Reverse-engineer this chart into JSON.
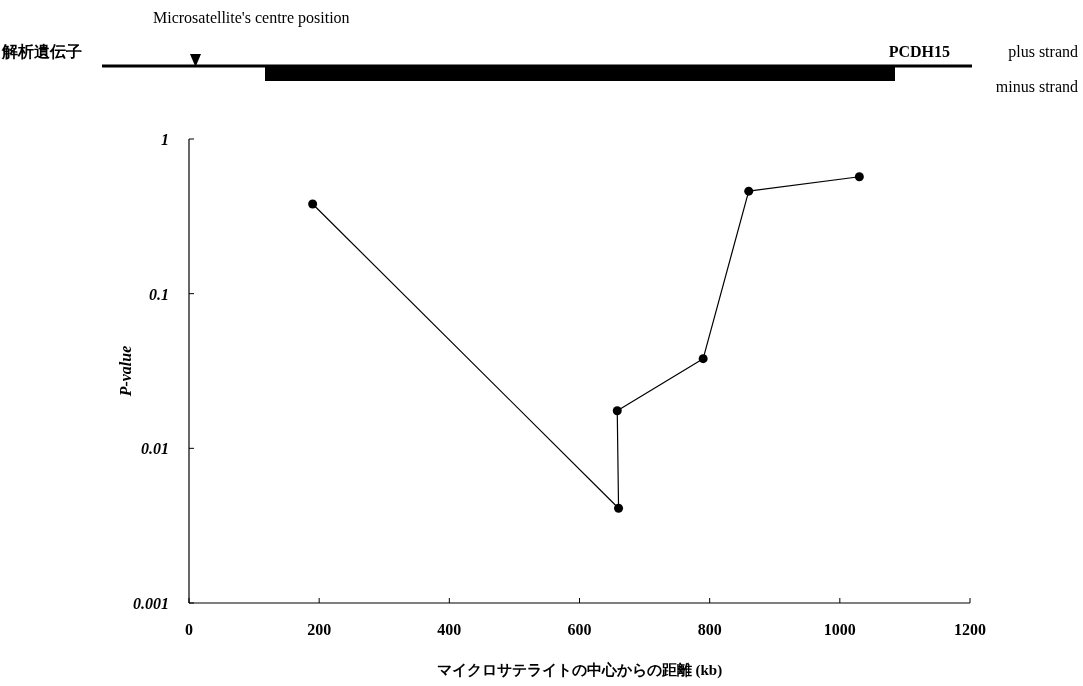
{
  "chart_data": {
    "type": "line",
    "xlabel": "マイクロサテライトの中心からの距離 (kb)",
    "ylabel": "P-value",
    "x": [
      190,
      660,
      658,
      790,
      860,
      1030
    ],
    "values": [
      0.38,
      0.0041,
      0.0175,
      0.038,
      0.46,
      0.57
    ],
    "color": "#000000",
    "marker": "circle",
    "line_style": "solid",
    "log": true,
    "xlim": [
      0,
      1200
    ],
    "xticks": [
      0,
      200,
      400,
      600,
      800,
      1000,
      1200
    ],
    "ylim": [
      0.001,
      1
    ],
    "yticks": [
      0.001,
      0.01,
      0.1,
      1
    ],
    "annotations": [
      "Microsatellite's centre position",
      "解析遺伝子",
      "PCDH15",
      "plus strand",
      "minus strand"
    ]
  }
}
